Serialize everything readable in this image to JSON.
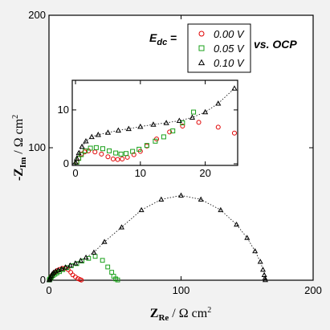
{
  "chart_data": [
    {
      "type": "scatter",
      "panel": "main",
      "xlim": [
        0,
        200
      ],
      "ylim": [
        0,
        200
      ],
      "xticks": [
        "0",
        "100",
        "200"
      ],
      "yticks": [
        "0",
        "100",
        "200"
      ],
      "xlabel": {
        "main": "Z",
        "sub": "Re",
        "unit": " / Ω cm",
        "sup": "2"
      },
      "ylabel": {
        "prefix": "-",
        "main": "Z",
        "sub": "Im",
        "unit": " / Ω cm",
        "sup": "2"
      },
      "legend": {
        "placement": "top-right",
        "prefix_main": "E",
        "prefix_sub": "dc",
        "prefix_eq": " =",
        "suffix": "vs. OCP",
        "entries": [
          "0.00 V",
          "0.05 V",
          "0.10 V"
        ]
      },
      "series": [
        {
          "name": "0.00 V",
          "marker": "circle",
          "color": "#e00000",
          "x": [
            0.3,
            0.6,
            1.0,
            1.5,
            2.2,
            3.0,
            4.0,
            5.2,
            6.5,
            8.0,
            10.0,
            12.0,
            14.5,
            16.5,
            18.0,
            20.0,
            22.0,
            23.5,
            24.5
          ],
          "y": [
            0.3,
            0.8,
            1.5,
            2.5,
            3.5,
            4.5,
            5.5,
            6.5,
            7.5,
            8.2,
            9.0,
            9.0,
            8.0,
            6.0,
            4.0,
            2.5,
            1.2,
            0.5,
            0.1
          ]
        },
        {
          "name": "0.05 V",
          "marker": "square",
          "color": "#1aa01a",
          "x": [
            0.3,
            0.6,
            1.2,
            2.0,
            3.0,
            4.5,
            6.0,
            8.0,
            10.5,
            13.5,
            17.0,
            21.0,
            25.0,
            30.0,
            35.0,
            40.5,
            44.5,
            47.5,
            49.0,
            50.5,
            52.0
          ],
          "y": [
            0.2,
            0.8,
            1.5,
            2.5,
            3.5,
            4.5,
            5.5,
            6.5,
            8.0,
            9.5,
            11.0,
            12.5,
            14.5,
            16.5,
            18.0,
            15.0,
            10.0,
            6.0,
            3.0,
            1.0,
            0.2
          ]
        },
        {
          "name": "0.10 V",
          "marker": "triangle",
          "color": "#000000",
          "x": [
            0.2,
            0.5,
            1.0,
            1.7,
            2.5,
            3.5,
            5.0,
            7.0,
            9.5,
            12.5,
            16.0,
            20.0,
            24.0,
            28.0,
            34.0,
            42.0,
            55.0,
            70.0,
            85.0,
            100.0,
            115.0,
            130.0,
            142.0,
            150.0,
            156.0,
            160.0,
            162.0,
            163.0,
            163.5,
            163.8
          ],
          "y": [
            0.2,
            0.8,
            2.0,
            3.5,
            4.8,
            5.8,
            6.8,
            7.6,
            8.6,
            9.8,
            11.2,
            12.8,
            14.8,
            17.2,
            21.0,
            29.0,
            40.0,
            53.0,
            61.0,
            64.0,
            61.0,
            53.0,
            42.0,
            32.0,
            22.0,
            14.0,
            8.0,
            4.0,
            1.5,
            0.2
          ]
        }
      ]
    },
    {
      "type": "scatter",
      "panel": "inset",
      "xlim": [
        -0.5,
        25
      ],
      "ylim": [
        -0.3,
        15.5
      ],
      "xticks": [
        "0",
        "10",
        "20"
      ],
      "yticks": [
        "0",
        "10"
      ],
      "series": [
        {
          "name": "0.00 V",
          "marker": "circle",
          "color": "#e00000",
          "x": [
            0.2,
            0.5,
            0.9,
            1.4,
            2.0,
            3.0,
            4.0,
            5.0,
            5.8,
            6.5,
            7.2,
            8.0,
            9.0,
            10.0,
            11.0,
            12.5,
            14.5,
            16.5,
            19.0,
            22.0,
            24.5
          ],
          "y": [
            0.3,
            1.0,
            1.8,
            2.2,
            2.4,
            2.2,
            1.8,
            1.3,
            0.9,
            0.8,
            0.9,
            1.2,
            1.7,
            2.3,
            3.3,
            4.6,
            5.9,
            7.0,
            7.7,
            6.8,
            5.7
          ]
        },
        {
          "name": "0.05 V",
          "marker": "square",
          "color": "#1aa01a",
          "x": [
            0.2,
            0.5,
            0.9,
            1.5,
            2.3,
            3.2,
            4.2,
            5.2,
            6.2,
            7.0,
            7.8,
            8.8,
            9.8,
            11.0,
            12.3,
            13.6,
            15.0,
            16.5,
            18.2
          ],
          "y": [
            0.3,
            1.0,
            1.7,
            2.4,
            2.9,
            3.0,
            2.8,
            2.4,
            2.0,
            1.8,
            1.9,
            2.3,
            2.7,
            3.4,
            4.2,
            5.0,
            6.1,
            7.6,
            9.6
          ]
        },
        {
          "name": "0.10 V",
          "marker": "triangle",
          "color": "#000000",
          "x": [
            0.0,
            0.2,
            0.5,
            1.0,
            1.6,
            2.5,
            3.5,
            5.0,
            6.6,
            8.2,
            10.0,
            12.0,
            14.0,
            16.0,
            18.0,
            20.0,
            22.0,
            24.5
          ],
          "y": [
            0.3,
            1.0,
            2.0,
            3.2,
            4.2,
            5.0,
            5.4,
            5.8,
            6.2,
            6.5,
            6.9,
            7.3,
            7.6,
            8.0,
            8.6,
            9.6,
            11.2,
            14.0
          ]
        }
      ]
    }
  ]
}
